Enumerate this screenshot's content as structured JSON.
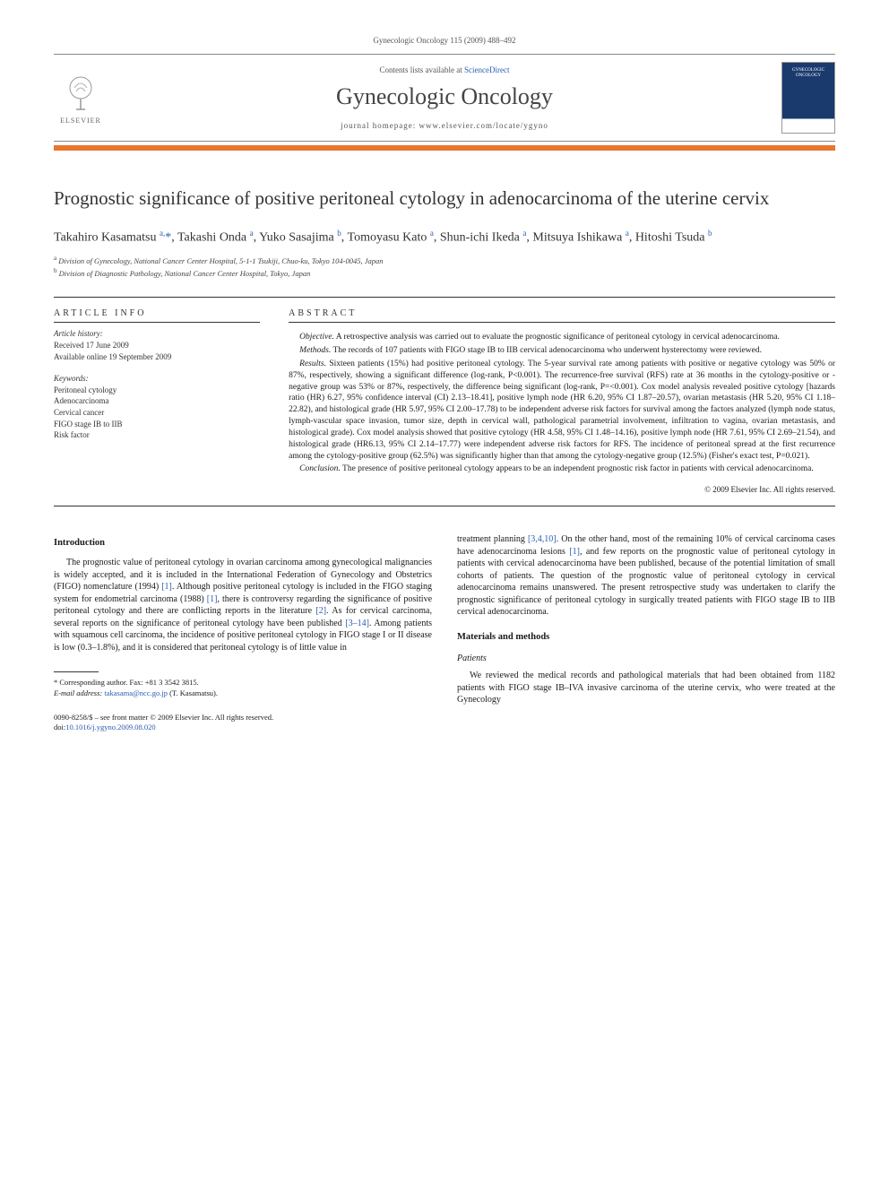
{
  "header": {
    "running": "Gynecologic Oncology 115 (2009) 488–492"
  },
  "banner": {
    "contents_prefix": "Contents lists available at ",
    "contents_link": "ScienceDirect",
    "journal": "Gynecologic Oncology",
    "homepage_prefix": "journal homepage: ",
    "homepage": "www.elsevier.com/locate/ygyno",
    "publisher": "ELSEVIER",
    "cover_line1": "GYNECOLOGIC",
    "cover_line2": "ONCOLOGY"
  },
  "title": "Prognostic significance of positive peritoneal cytology in adenocarcinoma of the uterine cervix",
  "authors_html": "Takahiro Kasamatsu <sup>a,</sup><span class='corr'>*</span>, Takashi Onda <sup>a</sup>, Yuko Sasajima <sup>b</sup>, Tomoyasu Kato <sup>a</sup>, Shun-ichi Ikeda <sup>a</sup>, Mitsuya Ishikawa <sup>a</sup>, Hitoshi Tsuda <sup>b</sup>",
  "affiliations": {
    "a": "Division of Gynecology, National Cancer Center Hospital, 5-1-1 Tsukiji, Chuo-ku, Tokyo 104-0045, Japan",
    "b": "Division of Diagnostic Pathology, National Cancer Center Hospital, Tokyo, Japan"
  },
  "info": {
    "heading": "ARTICLE INFO",
    "history_label": "Article history:",
    "received": "Received 17 June 2009",
    "online": "Available online 19 September 2009",
    "keywords_label": "Keywords:",
    "keywords": [
      "Peritoneal cytology",
      "Adenocarcinoma",
      "Cervical cancer",
      "FIGO stage IB to IIB",
      "Risk factor"
    ]
  },
  "abstract": {
    "heading": "ABSTRACT",
    "objective_label": "Objective.",
    "objective": "A retrospective analysis was carried out to evaluate the prognostic significance of peritoneal cytology in cervical adenocarcinoma.",
    "methods_label": "Methods.",
    "methods": "The records of 107 patients with FIGO stage IB to IIB cervical adenocarcinoma who underwent hysterectomy were reviewed.",
    "results_label": "Results.",
    "results": "Sixteen patients (15%) had positive peritoneal cytology. The 5-year survival rate among patients with positive or negative cytology was 50% or 87%, respectively, showing a significant difference (log-rank, P<0.001). The recurrence-free survival (RFS) rate at 36 months in the cytology-positive or -negative group was 53% or 87%, respectively, the difference being significant (log-rank, P=<0.001). Cox model analysis revealed positive cytology [hazards ratio (HR) 6.27, 95% confidence interval (CI) 2.13–18.41], positive lymph node (HR 6.20, 95% CI 1.87–20.57), ovarian metastasis (HR 5.20, 95% CI 1.18–22.82), and histological grade (HR 5.97, 95% CI 2.00–17.78) to be independent adverse risk factors for survival among the factors analyzed (lymph node status, lymph-vascular space invasion, tumor size, depth in cervical wall, pathological parametrial involvement, infiltration to vagina, ovarian metastasis, and histological grade). Cox model analysis showed that positive cytology (HR 4.58, 95% CI 1.48–14.16), positive lymph node (HR 7.61, 95% CI 2.69–21.54), and histological grade (HR6.13, 95% CI 2.14–17.77) were independent adverse risk factors for RFS. The incidence of peritoneal spread at the first recurrence among the cytology-positive group (62.5%) was significantly higher than that among the cytology-negative group (12.5%) (Fisher's exact test, P=0.021).",
    "conclusion_label": "Conclusion.",
    "conclusion": "The presence of positive peritoneal cytology appears to be an independent prognostic risk factor in patients with cervical adenocarcinoma.",
    "copyright": "© 2009 Elsevier Inc. All rights reserved."
  },
  "intro": {
    "heading": "Introduction",
    "p1a": "The prognostic value of peritoneal cytology in ovarian carcinoma among gynecological malignancies is widely accepted, and it is included in the International Federation of Gynecology and Obstetrics (FIGO) nomenclature (1994) ",
    "r1": "[1]",
    "p1b": ". Although positive peritoneal cytology is included in the FIGO staging system for endometrial carcinoma (1988) ",
    "r1b": "[1]",
    "p1c": ", there is controversy regarding the significance of positive peritoneal cytology and there are conflicting reports in the literature ",
    "r2": "[2]",
    "p1d": ". As for cervical carcinoma, several reports on the significance of peritoneal cytology have been published ",
    "r3": "[3–14]",
    "p1e": ". Among patients with squamous cell carcinoma, the incidence of positive peritoneal cytology in FIGO stage I or II disease is low (0.3–1.8%), and it is considered that peritoneal cytology is of little value in",
    "p2a": "treatment planning ",
    "r4": "[3,4,10]",
    "p2b": ". On the other hand, most of the remaining 10% of cervical carcinoma cases have adenocarcinoma lesions ",
    "r1c": "[1]",
    "p2c": ", and few reports on the prognostic value of peritoneal cytology in patients with cervical adenocarcinoma have been published, because of the potential limitation of small cohorts of patients. The question of the prognostic value of peritoneal cytology in cervical adenocarcinoma remains unanswered. The present retrospective study was undertaken to clarify the prognostic significance of peritoneal cytology in surgically treated patients with FIGO stage IB to IIB cervical adenocarcinoma."
  },
  "mm": {
    "heading": "Materials and methods",
    "sub": "Patients",
    "p1": "We reviewed the medical records and pathological materials that had been obtained from 1182 patients with FIGO stage IB–IVA invasive carcinoma of the uterine cervix, who were treated at the Gynecology"
  },
  "footnotes": {
    "corr": "* Corresponding author. Fax: +81 3 3542 3815.",
    "email_label": "E-mail address: ",
    "email": "takasama@ncc.go.jp",
    "email_suffix": " (T. Kasamatsu)."
  },
  "footer": {
    "line1": "0090-8258/$ – see front matter © 2009 Elsevier Inc. All rights reserved.",
    "doi_label": "doi:",
    "doi": "10.1016/j.ygyno.2009.08.020"
  },
  "colors": {
    "accent_orange": "#e8762d",
    "link_blue": "#2a5db0",
    "cover_blue": "#1a3a6e"
  }
}
